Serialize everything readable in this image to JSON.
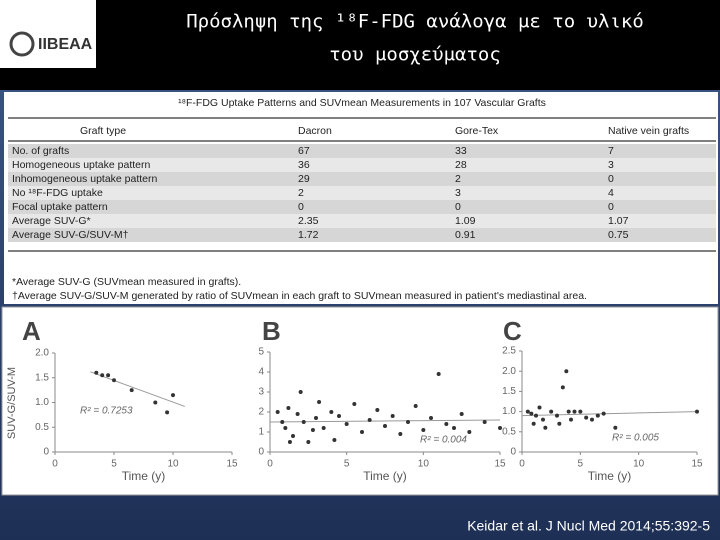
{
  "title": {
    "line1": "Πρόσληψη της ¹⁸F-FDG ανάλογα με το υλικό",
    "line2": "του μοσχεύματος"
  },
  "logo": {
    "text": "IIBEAA"
  },
  "table": {
    "title": "¹⁸F-FDG Uptake Patterns and SUVmean Measurements in 107 Vascular Grafts",
    "header": [
      "Graft type",
      "Dacron",
      "Gore-Tex",
      "Native vein grafts"
    ],
    "rows": [
      [
        "No. of grafts",
        "67",
        "33",
        "7"
      ],
      [
        "Homogeneous uptake pattern",
        "36",
        "28",
        "3"
      ],
      [
        "Inhomogeneous uptake pattern",
        "29",
        "2",
        "0"
      ],
      [
        "No ¹⁸F-FDG uptake",
        "2",
        "3",
        "4"
      ],
      [
        "Focal uptake pattern",
        "0",
        "0",
        "0"
      ],
      [
        "Average SUV-G*",
        "2.35",
        "1.09",
        "1.07"
      ],
      [
        "Average SUV-G/SUV-M†",
        "1.72",
        "0.91",
        "0.75"
      ]
    ],
    "footnotes": [
      "*Average SUV-G (SUVmean measured in grafts).",
      "†Average SUV-G/SUV-M generated by ratio of SUVmean in each graft to SUVmean measured in patient's mediastinal area."
    ]
  },
  "figure": {
    "y_label": "SUV-G/SUV-M",
    "panels": [
      {
        "letter": "A",
        "x_label": "Time (y)",
        "r2": "R² = 0.7253",
        "xlim": [
          0,
          15
        ],
        "xticks": [
          0,
          5,
          10,
          15
        ],
        "ylim": [
          0,
          2
        ],
        "yticks": [
          0,
          0.5,
          {
            "value": 1,
            "label": "1.0"
          },
          1.5,
          {
            "value": 2,
            "label": "2.0"
          }
        ],
        "x": [
          3.5,
          4,
          4.5,
          5,
          6.5,
          8.5,
          9.5,
          10
        ],
        "y": [
          1.6,
          1.55,
          1.55,
          1.45,
          1.25,
          1.0,
          0.8,
          1.15
        ],
        "trend": {
          "x": [
            3,
            11
          ],
          "y": [
            1.62,
            0.92
          ]
        }
      },
      {
        "letter": "B",
        "x_label": "Time (y)",
        "r2": "R² = 0.004",
        "xlim": [
          0,
          15
        ],
        "xticks": [
          0,
          5,
          10,
          15
        ],
        "ylim": [
          0,
          5
        ],
        "yticks": [
          0,
          1,
          2,
          3,
          4,
          5
        ],
        "x": [
          0.5,
          0.8,
          1,
          1.2,
          1.5,
          1.8,
          2,
          2.2,
          2.5,
          3,
          3.2,
          3.5,
          4,
          4.2,
          4.5,
          5,
          5.5,
          6,
          6.5,
          7,
          7.5,
          8,
          8.5,
          9,
          9.5,
          10,
          10.5,
          11,
          11.5,
          12,
          12.5,
          13,
          14,
          15,
          2.8,
          1.3
        ],
        "y": [
          2,
          1.5,
          1.2,
          2.2,
          0.8,
          1.9,
          3,
          1.5,
          0.5,
          1.7,
          2.5,
          1.2,
          2,
          0.6,
          1.8,
          1.4,
          2.4,
          1,
          1.6,
          2.1,
          1.3,
          1.8,
          0.9,
          1.5,
          2.3,
          1.1,
          1.7,
          3.9,
          1.4,
          1.2,
          1.9,
          1,
          1.5,
          1.2,
          1.1,
          0.5
        ],
        "trend": {
          "x": [
            0,
            15
          ],
          "y": [
            1.5,
            1.6
          ]
        }
      },
      {
        "letter": "C",
        "x_label": "Time (y)",
        "r2": "R² = 0.005",
        "xlim": [
          0,
          15
        ],
        "xticks": [
          0,
          5,
          10,
          15
        ],
        "ylim": [
          0,
          2.5
        ],
        "yticks": [
          0,
          0.5,
          {
            "value": 1,
            "label": "1.0"
          },
          1.5,
          {
            "value": 2,
            "label": "2.0"
          },
          2.5
        ],
        "x": [
          0.5,
          1,
          1.2,
          1.5,
          2,
          2.5,
          3,
          3.5,
          3.8,
          4,
          4.2,
          4.5,
          5,
          5.5,
          6,
          6.5,
          7,
          8,
          15,
          1.8,
          3.2,
          0.8
        ],
        "y": [
          1,
          0.7,
          0.9,
          1.1,
          0.6,
          1,
          0.9,
          1.6,
          2,
          1,
          0.8,
          1,
          1,
          0.85,
          0.8,
          0.9,
          0.95,
          0.6,
          1,
          0.8,
          0.7,
          0.95
        ],
        "trend": {
          "x": [
            0,
            15
          ],
          "y": [
            0.9,
            1.0
          ]
        }
      }
    ]
  },
  "citation": "Keidar et al. J Nucl Med 2014;55:392-5"
}
